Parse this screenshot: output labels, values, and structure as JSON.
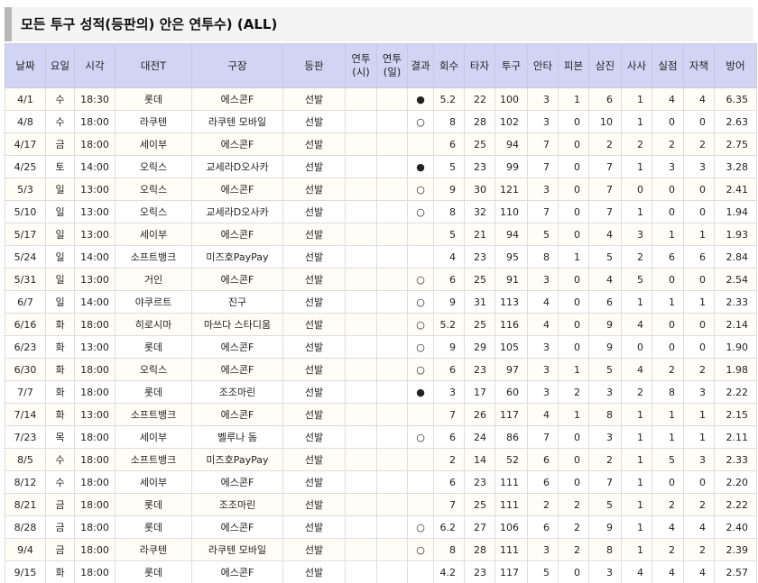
{
  "title": "모든 투구 성적(등판의) 안은 연투수) (ALL)",
  "table": {
    "headers": [
      "날짜",
      "요일",
      "시각",
      "대전T",
      "구장",
      "등판",
      "연투\n(시)",
      "연투\n(일)",
      "결과",
      "회수",
      "타자",
      "투구",
      "안타",
      "피본",
      "삼진",
      "사사",
      "실점",
      "자책",
      "방어"
    ],
    "rows": [
      [
        "4/1",
        "수",
        "18:30",
        "롯데",
        "에스콘F",
        "선발",
        null,
        null,
        "●",
        "5.2",
        "22",
        "100",
        "3",
        "1",
        "6",
        "1",
        "4",
        "4",
        "6.35"
      ],
      [
        "4/8",
        "수",
        "18:00",
        "라쿠텐",
        "라쿠텐 모바일",
        "선발",
        null,
        null,
        "○",
        "8",
        "28",
        "102",
        "3",
        "0",
        "10",
        "1",
        "0",
        "0",
        "2.63"
      ],
      [
        "4/17",
        "금",
        "18:00",
        "세이부",
        "에스콘F",
        "선발",
        null,
        null,
        null,
        "6",
        "25",
        "94",
        "7",
        "0",
        "2",
        "2",
        "2",
        "2",
        "2.75"
      ],
      [
        "4/25",
        "토",
        "14:00",
        "오릭스",
        "교세라D오사카",
        "선발",
        null,
        null,
        "●",
        "5",
        "23",
        "99",
        "7",
        "0",
        "7",
        "1",
        "3",
        "3",
        "3.28"
      ],
      [
        "5/3",
        "일",
        "13:00",
        "오릭스",
        "에스콘F",
        "선발",
        null,
        null,
        "○",
        "9",
        "30",
        "121",
        "3",
        "0",
        "7",
        "0",
        "0",
        "0",
        "2.41"
      ],
      [
        "5/10",
        "일",
        "13:00",
        "오릭스",
        "교세라D오사카",
        "선발",
        null,
        null,
        "○",
        "8",
        "32",
        "110",
        "7",
        "0",
        "7",
        "1",
        "0",
        "0",
        "1.94"
      ],
      [
        "5/17",
        "일",
        "13:00",
        "세이부",
        "에스콘F",
        "선발",
        null,
        null,
        null,
        "5",
        "21",
        "94",
        "5",
        "0",
        "4",
        "3",
        "1",
        "1",
        "1.93"
      ],
      [
        "5/24",
        "일",
        "14:00",
        "소프트뱅크",
        "미즈호PayPay",
        "선발",
        null,
        null,
        null,
        "4",
        "23",
        "95",
        "8",
        "1",
        "5",
        "2",
        "6",
        "6",
        "2.84"
      ],
      [
        "5/31",
        "일",
        "13:00",
        "거인",
        "에스콘F",
        "선발",
        null,
        null,
        "○",
        "6",
        "25",
        "91",
        "3",
        "0",
        "4",
        "5",
        "0",
        "0",
        "2.54"
      ],
      [
        "6/7",
        "일",
        "14:00",
        "야쿠르트",
        "진구",
        "선발",
        null,
        null,
        "○",
        "9",
        "31",
        "113",
        "4",
        "0",
        "6",
        "1",
        "1",
        "1",
        "2.33"
      ],
      [
        "6/16",
        "화",
        "18:00",
        "히로시마",
        "마쓰다 스타디움",
        "선발",
        null,
        null,
        "○",
        "5.2",
        "25",
        "116",
        "4",
        "0",
        "9",
        "4",
        "0",
        "0",
        "2.14"
      ],
      [
        "6/23",
        "화",
        "13:00",
        "롯데",
        "에스콘F",
        "선발",
        null,
        null,
        "○",
        "9",
        "29",
        "105",
        "3",
        "0",
        "9",
        "0",
        "0",
        "0",
        "1.90"
      ],
      [
        "6/30",
        "화",
        "18:00",
        "오릭스",
        "에스콘F",
        "선발",
        null,
        null,
        "○",
        "6",
        "23",
        "97",
        "3",
        "1",
        "5",
        "4",
        "2",
        "2",
        "1.98"
      ],
      [
        "7/7",
        "화",
        "18:00",
        "롯데",
        "조조마린",
        "선발",
        null,
        null,
        "●",
        "3",
        "17",
        "60",
        "3",
        "2",
        "3",
        "2",
        "8",
        "3",
        "2.22"
      ],
      [
        "7/14",
        "화",
        "13:00",
        "소프트뱅크",
        "에스콘F",
        "선발",
        null,
        null,
        null,
        "7",
        "26",
        "117",
        "4",
        "1",
        "8",
        "1",
        "1",
        "1",
        "2.15"
      ],
      [
        "7/23",
        "목",
        "18:00",
        "세이부",
        "벨루나 돔",
        "선발",
        null,
        null,
        "○",
        "6",
        "24",
        "86",
        "7",
        "0",
        "3",
        "1",
        "1",
        "1",
        "2.11"
      ],
      [
        "8/5",
        "수",
        "18:00",
        "소프트뱅크",
        "미즈호PayPay",
        "선발",
        null,
        null,
        null,
        "2",
        "14",
        "52",
        "6",
        "0",
        "2",
        "1",
        "5",
        "3",
        "2.33"
      ],
      [
        "8/12",
        "수",
        "18:00",
        "세이부",
        "에스콘F",
        "선발",
        null,
        null,
        null,
        "6",
        "23",
        "111",
        "6",
        "0",
        "7",
        "1",
        "0",
        "0",
        "2.20"
      ],
      [
        "8/21",
        "금",
        "18:00",
        "롯데",
        "조조마린",
        "선발",
        null,
        null,
        null,
        "7",
        "25",
        "111",
        "2",
        "2",
        "5",
        "1",
        "2",
        "2",
        "2.22"
      ],
      [
        "8/28",
        "금",
        "18:00",
        "롯데",
        "에스콘F",
        "선발",
        null,
        null,
        "○",
        "6.2",
        "27",
        "106",
        "6",
        "2",
        "9",
        "1",
        "4",
        "4",
        "2.40"
      ],
      [
        "9/4",
        "금",
        "18:00",
        "라쿠텐",
        "라쿠텐 모바일",
        "선발",
        null,
        null,
        "○",
        "8",
        "28",
        "111",
        "3",
        "2",
        "8",
        "1",
        "2",
        "2",
        "2.39"
      ],
      [
        "9/15",
        "화",
        "18:00",
        "롯데",
        "에스콘F",
        "선발",
        null,
        null,
        null,
        "4.2",
        "23",
        "117",
        "5",
        "0",
        "3",
        "4",
        "4",
        "4",
        "2.57"
      ]
    ]
  }
}
